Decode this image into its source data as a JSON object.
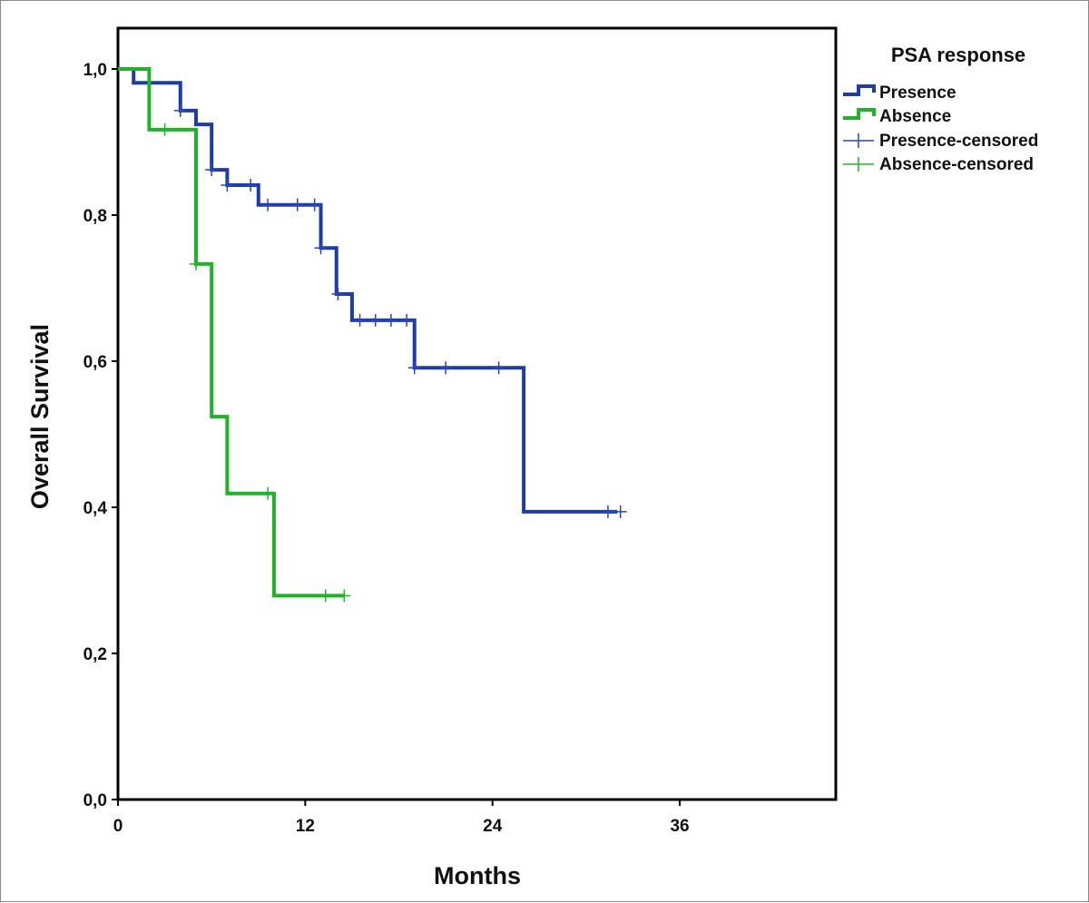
{
  "chart_data": {
    "type": "line",
    "subtype": "kaplan-meier step",
    "xlabel": "Months",
    "ylabel": "Overall Survival",
    "xlim": [
      0,
      46
    ],
    "ylim": [
      0,
      1.05
    ],
    "xticks": [
      0,
      12,
      24,
      36
    ],
    "xtick_labels": [
      "0",
      "12",
      "24",
      "36"
    ],
    "yticks": [
      0,
      0.2,
      0.4,
      0.6,
      0.8,
      1.0
    ],
    "ytick_labels": [
      "0,0",
      "0,2",
      "0,4",
      "0,6",
      "0,8",
      "1,0"
    ],
    "grid": false,
    "legend": {
      "title": "PSA response",
      "position": "right",
      "entries": [
        "Presence",
        "Absence",
        "Presence-censored",
        "Absence-censored"
      ]
    },
    "series": [
      {
        "name": "Presence",
        "color": "#1f3ca6",
        "censor_color": "#2b45b8",
        "steps": [
          [
            0,
            1.0
          ],
          [
            1,
            0.981
          ],
          [
            4,
            0.943
          ],
          [
            5,
            0.924
          ],
          [
            6,
            0.862
          ],
          [
            7,
            0.841
          ],
          [
            9,
            0.814
          ],
          [
            13,
            0.755
          ],
          [
            14,
            0.692
          ],
          [
            15,
            0.656
          ],
          [
            19,
            0.591
          ],
          [
            26,
            0.394
          ],
          [
            32,
            0.394
          ]
        ],
        "censored": [
          [
            4,
            0.943
          ],
          [
            6,
            0.862
          ],
          [
            7,
            0.841
          ],
          [
            8.5,
            0.841
          ],
          [
            9.6,
            0.814
          ],
          [
            11.5,
            0.814
          ],
          [
            12.6,
            0.814
          ],
          [
            13,
            0.755
          ],
          [
            14.1,
            0.692
          ],
          [
            15.5,
            0.656
          ],
          [
            16.5,
            0.656
          ],
          [
            17.5,
            0.656
          ],
          [
            18.5,
            0.656
          ],
          [
            19,
            0.591
          ],
          [
            21,
            0.591
          ],
          [
            24.4,
            0.591
          ],
          [
            31.4,
            0.394
          ],
          [
            32.2,
            0.394
          ]
        ]
      },
      {
        "name": "Absence",
        "color": "#22b22a",
        "censor_color": "#22b22a",
        "steps": [
          [
            0,
            1.0
          ],
          [
            2,
            0.917
          ],
          [
            5,
            0.733
          ],
          [
            6,
            0.524
          ],
          [
            7,
            0.419
          ],
          [
            10,
            0.279
          ],
          [
            14.5,
            0.279
          ]
        ],
        "censored": [
          [
            3,
            0.917
          ],
          [
            5,
            0.733
          ],
          [
            9.6,
            0.419
          ],
          [
            13.3,
            0.279
          ],
          [
            14.5,
            0.279
          ]
        ]
      }
    ]
  }
}
